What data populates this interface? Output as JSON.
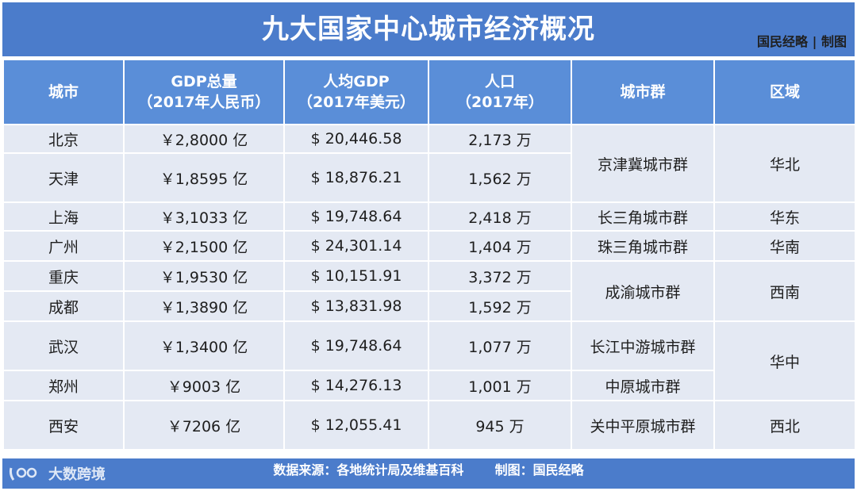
{
  "title": "九大国家中心城市经济概况",
  "credit": "国民经略 | 制图",
  "table": {
    "headers": [
      {
        "line1": "城市",
        "line2": ""
      },
      {
        "line1": "GDP总量",
        "line2": "（2017年人民币）"
      },
      {
        "line1": "人均GDP",
        "line2": "（2017年美元）"
      },
      {
        "line1": "人口",
        "line2": "（2017年）"
      },
      {
        "line1": "城市群",
        "line2": ""
      },
      {
        "line1": "区域",
        "line2": ""
      }
    ],
    "rows": [
      {
        "city": "北京",
        "gdp": "￥2,8000 亿",
        "per_capita": "$ 20,446.58",
        "population": "2,173 万"
      },
      {
        "city": "天津",
        "gdp": "￥1,8595 亿",
        "per_capita": "$ 18,876.21",
        "population": "1,562 万"
      },
      {
        "city": "上海",
        "gdp": "￥3,1033 亿",
        "per_capita": "$ 19,748.64",
        "population": "2,418 万"
      },
      {
        "city": "广州",
        "gdp": "￥2,1500 亿",
        "per_capita": "$ 24,301.14",
        "population": "1,404 万"
      },
      {
        "city": "重庆",
        "gdp": "￥1,9530 亿",
        "per_capita": "$ 10,151.91",
        "population": "3,372 万"
      },
      {
        "city": "成都",
        "gdp": "￥1,3890 亿",
        "per_capita": "$ 13,831.98",
        "population": "1,592 万"
      },
      {
        "city": "武汉",
        "gdp": "￥1,3400 亿",
        "per_capita": "$ 19,748.64",
        "population": "1,077 万"
      },
      {
        "city": "郑州",
        "gdp": "￥9003 亿",
        "per_capita": "$ 14,276.13",
        "population": "1,001 万"
      },
      {
        "city": "西安",
        "gdp": "￥7206 亿",
        "per_capita": "$ 12,055.41",
        "population": "945 万"
      }
    ],
    "clusters": [
      "京津冀城市群",
      "长三角城市群",
      "珠三角城市群",
      "成渝城市群",
      "长江中游城市群",
      "中原城市群",
      "关中平原城市群"
    ],
    "regions": [
      "华北",
      "华东",
      "华南",
      "西南",
      "华中",
      "西北"
    ]
  },
  "footer": {
    "source": "数据来源：各地统计局及维基百科",
    "made_by": "制图：国民经略",
    "logo_text": "大数跨境"
  },
  "watermark": {
    "text": "国民经略"
  }
}
